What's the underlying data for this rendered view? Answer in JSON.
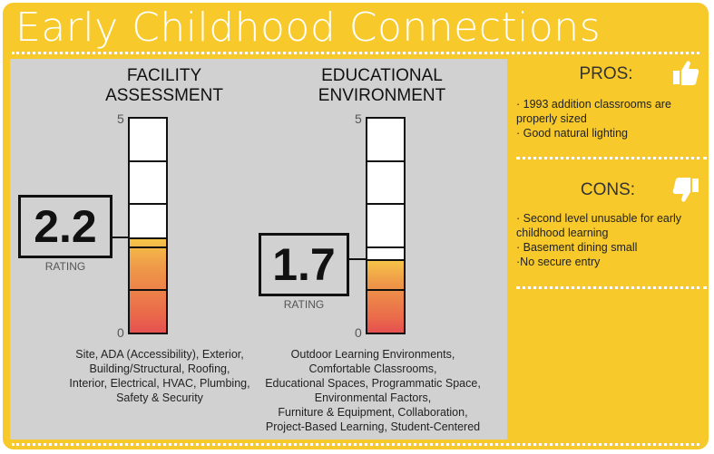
{
  "title": "Early Childhood Connections",
  "chart_data": [
    {
      "type": "bar",
      "title": "FACILITY ASSESSMENT",
      "value": 2.2,
      "ylim": [
        0,
        5
      ],
      "tick_labels": [
        "5",
        "0"
      ],
      "rating_text": "2.2",
      "rating_label": "RATING",
      "caption": [
        "Site, ADA (Accessibility), Exterior,",
        "Building/Structural, Roofing,",
        "Interior, Electrical, HVAC, Plumbing,",
        "Safety & Security"
      ]
    },
    {
      "type": "bar",
      "title": "EDUCATIONAL ENVIRONMENT",
      "value": 1.7,
      "ylim": [
        0,
        5
      ],
      "tick_labels": [
        "5",
        "0"
      ],
      "rating_text": "1.7",
      "rating_label": "RATING",
      "caption": [
        "Outdoor Learning Environments,",
        "Comfortable Classrooms,",
        "Educational Spaces, Programmatic Space,",
        "Environmental Factors,",
        "Furniture & Equipment, Collaboration,",
        "Project-Based Learning, Student-Centered"
      ]
    }
  ],
  "pros": {
    "heading": "PROS:",
    "icon": "thumbs-up-icon",
    "items": [
      "· 1993 addition classrooms are",
      "properly sized",
      "· Good natural lighting"
    ]
  },
  "cons": {
    "heading": "CONS:",
    "icon": "thumbs-down-icon",
    "items": [
      "· Second level unusable for early",
      "childhood learning",
      "· Basement dining small",
      "·No secure entry"
    ]
  },
  "colors": {
    "background": "#f7c92b",
    "panel": "#d1d1d1",
    "fill_top": "#f6c548",
    "fill_bottom": "#e55050"
  }
}
